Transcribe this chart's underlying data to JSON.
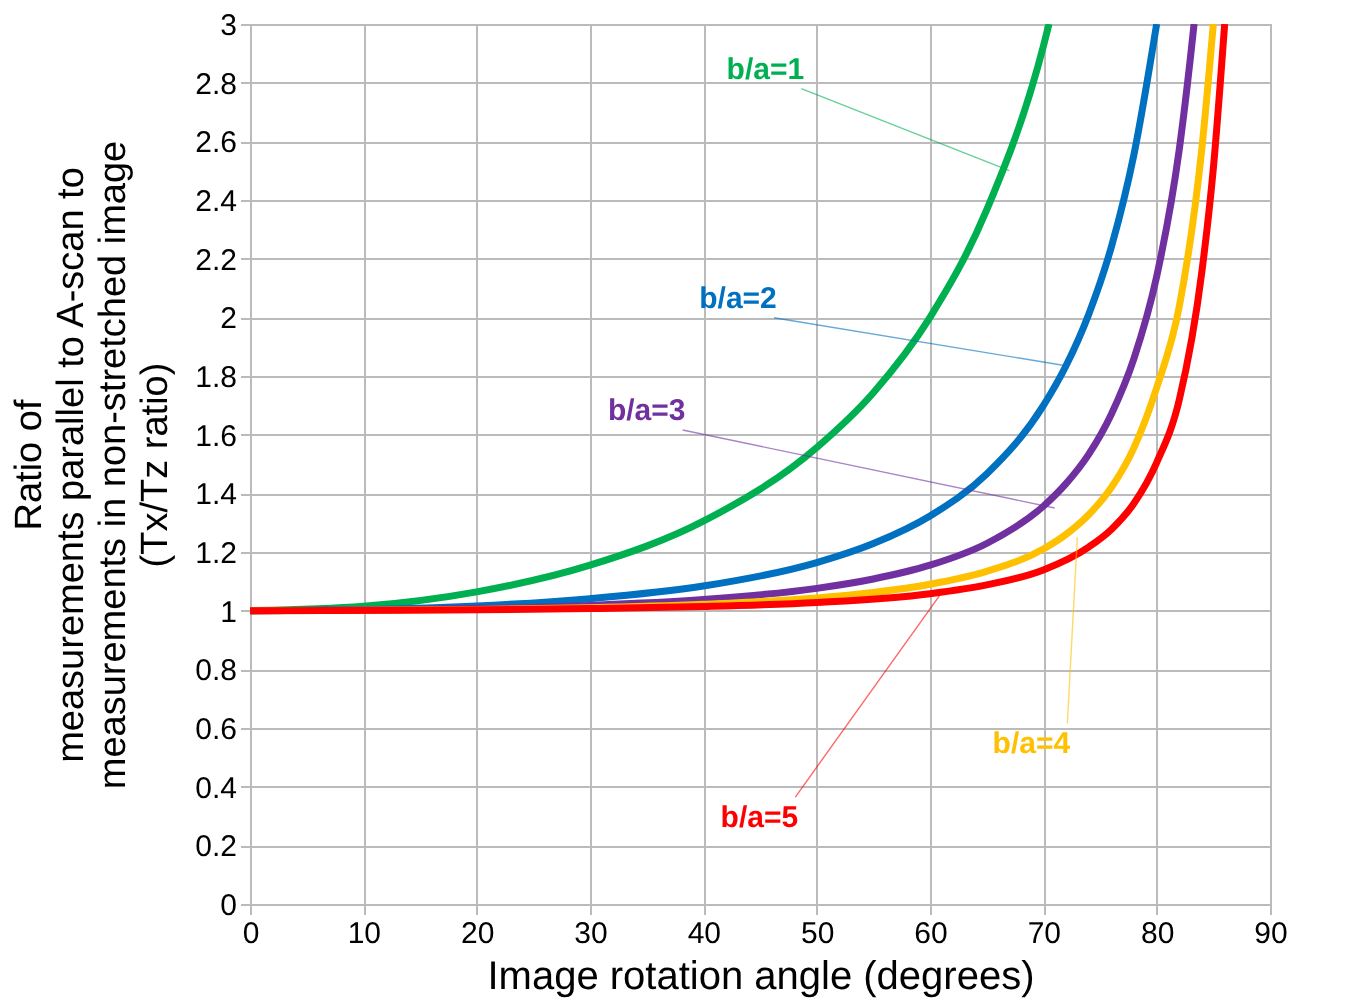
{
  "chart_data": {
    "type": "line",
    "xlabel": "Image rotation angle (degrees)",
    "ylabel": "Ratio of\nmeasurements parallel to A-scan to\nmeasurements in non-stretched image\n(Tx/Tz ratio)",
    "xlim": [
      0,
      90
    ],
    "xticks": [
      0,
      10,
      20,
      30,
      40,
      50,
      60,
      70,
      80,
      90
    ],
    "ylim": [
      0,
      3
    ],
    "yticks": [
      0,
      0.2,
      0.4,
      0.6,
      0.8,
      1,
      1.2,
      1.4,
      1.6,
      1.8,
      2,
      2.2,
      2.4,
      2.6,
      2.8,
      3
    ],
    "grid": true,
    "line_style": "solid",
    "marker": "none",
    "series": [
      {
        "color": "#00b050",
        "x": [
          0,
          10,
          20,
          30,
          40,
          50,
          55,
          60,
          65,
          70,
          70.5
        ],
        "values": [
          1,
          1.015,
          1.064,
          1.155,
          1.305,
          1.556,
          1.743,
          2.0,
          2.366,
          2.924,
          3.0
        ]
      },
      {
        "color": "#0070c0",
        "x": [
          0,
          10,
          20,
          30,
          40,
          50,
          55,
          60,
          65,
          70,
          72,
          74,
          76,
          78,
          80
        ],
        "values": [
          1,
          1.004,
          1.016,
          1.041,
          1.084,
          1.164,
          1.229,
          1.323,
          1.466,
          1.699,
          1.835,
          2.01,
          2.24,
          2.556,
          3.0
        ]
      },
      {
        "color": "#7030a0",
        "x": [
          0,
          10,
          20,
          30,
          40,
          50,
          55,
          60,
          65,
          70,
          72,
          74,
          76,
          78,
          80,
          82,
          83,
          83.3
        ],
        "values": [
          1,
          1.002,
          1.007,
          1.018,
          1.038,
          1.076,
          1.108,
          1.155,
          1.229,
          1.356,
          1.433,
          1.533,
          1.67,
          1.86,
          2.139,
          2.574,
          2.893,
          3.0
        ]
      },
      {
        "color": "#ffc000",
        "x": [
          0,
          20,
          30,
          40,
          50,
          55,
          60,
          65,
          70,
          72,
          74,
          76,
          78,
          80,
          82,
          84,
          85
        ],
        "values": [
          1,
          1.004,
          1.01,
          1.022,
          1.043,
          1.062,
          1.09,
          1.134,
          1.21,
          1.26,
          1.327,
          1.42,
          1.556,
          1.76,
          2.038,
          2.58,
          3.0
        ]
      },
      {
        "color": "#ff0000",
        "x": [
          0,
          20,
          30,
          40,
          50,
          60,
          65,
          70,
          74,
          76,
          78,
          80,
          82,
          84,
          85,
          86
        ],
        "values": [
          1,
          1.003,
          1.007,
          1.014,
          1.028,
          1.058,
          1.088,
          1.139,
          1.217,
          1.277,
          1.366,
          1.505,
          1.72,
          2.159,
          2.508,
          3.0
        ]
      }
    ],
    "annotations": [
      {
        "text": "b/a=1",
        "x": 67,
        "y": 2.5
      },
      {
        "text": "b/a=2",
        "x": 72,
        "y": 1.835
      },
      {
        "text": "b/a=3",
        "x": 71,
        "y": 1.35
      },
      {
        "text": "b/a=4",
        "x": 73,
        "y": 1.25
      },
      {
        "text": "b/a=5",
        "x": 61,
        "y": 1.06
      }
    ]
  }
}
